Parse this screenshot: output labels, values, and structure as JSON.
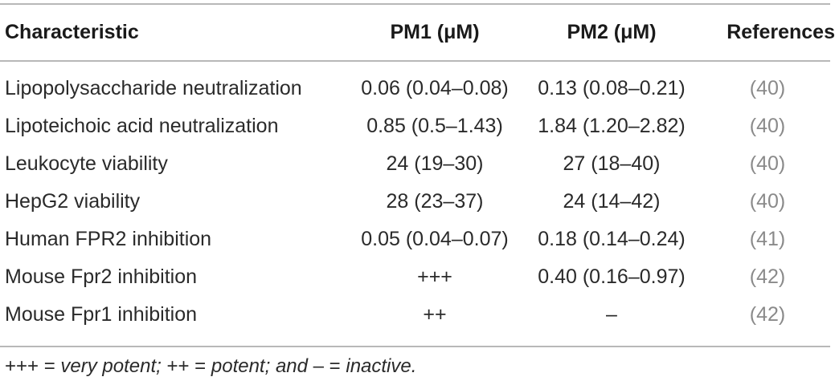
{
  "table": {
    "headers": [
      "Characteristic",
      "PM1 (μM)",
      "PM2 (μM)",
      "References"
    ],
    "rows": [
      {
        "characteristic": "Lipopolysaccharide neutralization",
        "pm1": "0.06 (0.04–0.08)",
        "pm2": "0.13 (0.08–0.21)",
        "ref": "(40)"
      },
      {
        "characteristic": "Lipoteichoic acid neutralization",
        "pm1": "0.85 (0.5–1.43)",
        "pm2": "1.84 (1.20–2.82)",
        "ref": "(40)"
      },
      {
        "characteristic": "Leukocyte viability",
        "pm1": "24 (19–30)",
        "pm2": "27 (18–40)",
        "ref": "(40)"
      },
      {
        "characteristic": "HepG2 viability",
        "pm1": "28 (23–37)",
        "pm2": "24 (14–42)",
        "ref": "(40)"
      },
      {
        "characteristic": "Human FPR2 inhibition",
        "pm1": "0.05 (0.04–0.07)",
        "pm2": "0.18 (0.14–0.24)",
        "ref": "(41)"
      },
      {
        "characteristic": "Mouse Fpr2 inhibition",
        "pm1": "+++",
        "pm2": "0.40 (0.16–0.97)",
        "ref": "(42)"
      },
      {
        "characteristic": "Mouse Fpr1 inhibition",
        "pm1": "++",
        "pm2": "–",
        "ref": "(42)"
      }
    ]
  },
  "footnote": {
    "part1": "+++ = ",
    "part2": "very potent; ",
    "part3": "++ = ",
    "part4": "potent; and ",
    "part5": "– = ",
    "part6": "inactive."
  },
  "colors": {
    "rule": "#b8b8b8",
    "reference_link": "#8a8a8a"
  }
}
